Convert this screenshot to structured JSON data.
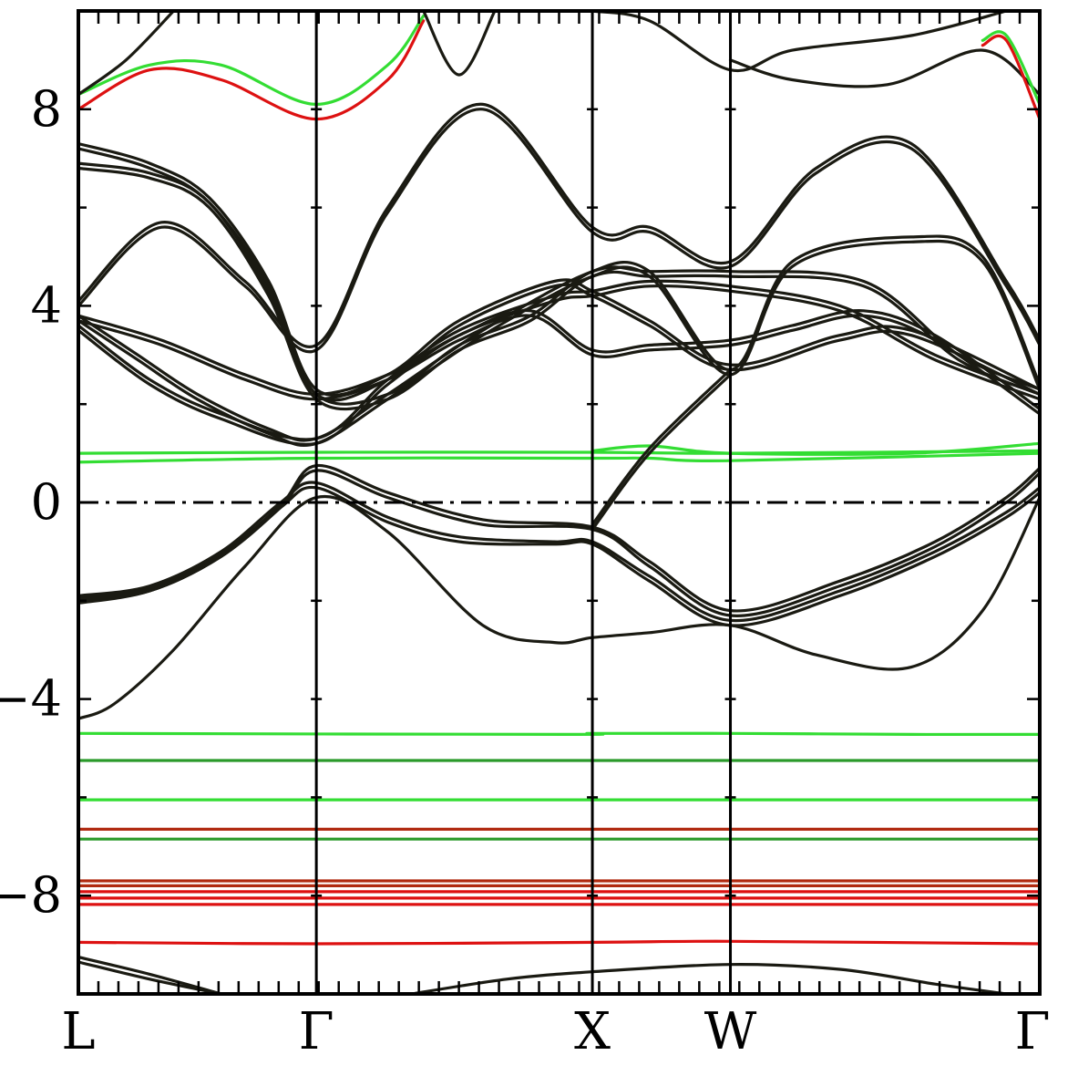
{
  "chart_data": {
    "type": "line",
    "title": "",
    "xlabel": "",
    "ylabel": "",
    "ylim": [
      -10.0,
      10.0
    ],
    "yticks": [
      "−8",
      "−4",
      "0",
      "4",
      "8"
    ],
    "ytick_values": [
      -8,
      -4,
      0,
      4,
      8
    ],
    "high_symmetry_points": [
      {
        "label": "L",
        "x": 0.0
      },
      {
        "label": "Γ",
        "x": 1.0
      },
      {
        "label": "X",
        "x": 2.16
      },
      {
        "label": "W",
        "x": 2.74
      },
      {
        "label": "Γ",
        "x": 4.04
      }
    ],
    "fermi_level": 0,
    "colors": {
      "frame": "#000000",
      "dark": "#1a1a12",
      "green": "#33dd33",
      "green_dark": "#2a9a2a",
      "red": "#dd1111",
      "red_dark": "#b02a10"
    },
    "series": [
      {
        "color": "green",
        "x": [
          0,
          2.04,
          2.16,
          2.74,
          3.5,
          4.04
        ],
        "y": [
          -4.7,
          -4.72,
          -4.7,
          -4.7,
          -4.72,
          -4.72
        ]
      },
      {
        "color": "green_dark",
        "x": [
          0,
          4.04
        ],
        "y": [
          -5.25,
          -5.25
        ]
      },
      {
        "color": "green",
        "x": [
          0,
          4.04
        ],
        "y": [
          -6.05,
          -6.05
        ]
      },
      {
        "color": "red_dark",
        "x": [
          0,
          4.04
        ],
        "y": [
          -6.65,
          -6.65
        ]
      },
      {
        "color": "green_dark",
        "x": [
          0,
          4.04
        ],
        "y": [
          -6.85,
          -6.85
        ]
      },
      {
        "color": "red_dark",
        "x": [
          0,
          4.04
        ],
        "y": [
          -7.7,
          -7.7
        ]
      },
      {
        "color": "red_dark",
        "x": [
          0,
          4.04
        ],
        "y": [
          -7.8,
          -7.8
        ]
      },
      {
        "color": "red",
        "x": [
          0,
          4.04
        ],
        "y": [
          -7.92,
          -7.92
        ]
      },
      {
        "color": "red",
        "x": [
          0,
          4.04
        ],
        "y": [
          -8.05,
          -8.05
        ]
      },
      {
        "color": "red",
        "x": [
          0,
          4.04
        ],
        "y": [
          -8.18,
          -8.18
        ]
      },
      {
        "color": "red",
        "x": [
          0,
          1.0,
          2.16,
          2.74,
          4.04
        ],
        "y": [
          -8.95,
          -8.98,
          -8.95,
          -8.93,
          -8.98
        ]
      },
      {
        "color": "dark",
        "x": [
          0,
          0.3,
          0.6
        ],
        "y": [
          -9.25,
          -9.6,
          -10.0
        ]
      },
      {
        "color": "dark",
        "x": [
          0,
          0.3,
          0.6
        ],
        "y": [
          -9.35,
          -9.7,
          -10.0
        ]
      },
      {
        "color": "dark",
        "x": [
          1.4,
          1.8,
          2.16,
          2.74,
          3.2,
          3.6,
          3.9
        ],
        "y": [
          -10.0,
          -9.7,
          -9.55,
          -9.4,
          -9.5,
          -9.8,
          -10.0
        ]
      },
      {
        "color": "green",
        "x": [
          0,
          1.0,
          2.16,
          2.4,
          2.74,
          4.04
        ],
        "y": [
          0.82,
          0.9,
          0.9,
          0.9,
          0.85,
          1.0
        ]
      },
      {
        "color": "green",
        "x": [
          0,
          1.0,
          2.16,
          2.74,
          4.04
        ],
        "y": [
          1.0,
          1.02,
          1.02,
          1.0,
          1.05
        ]
      },
      {
        "color": "green",
        "x": [
          2.16,
          2.4,
          2.74,
          3.5,
          4.04
        ],
        "y": [
          1.05,
          1.15,
          1.0,
          1.0,
          1.2
        ]
      },
      {
        "color": "dark",
        "x": [
          0,
          0.15,
          0.4,
          0.7,
          1.0,
          1.3,
          1.7,
          2.0,
          2.16,
          2.4,
          2.74,
          3.1,
          3.5,
          3.8,
          4.04
        ],
        "y": [
          -4.4,
          -4.1,
          -3.0,
          -1.3,
          0.1,
          -0.6,
          -2.5,
          -2.85,
          -2.75,
          -2.65,
          -2.5,
          -3.1,
          -3.35,
          -2.2,
          0.1
        ]
      },
      {
        "color": "dark",
        "x": [
          0,
          0.3,
          0.6,
          0.85,
          1.0,
          1.3,
          1.6,
          2.0,
          2.16,
          2.4,
          2.74,
          3.2,
          3.6,
          3.9,
          4.04
        ],
        "y": [
          -1.9,
          -1.7,
          -1.0,
          0.0,
          0.4,
          -0.3,
          -0.7,
          -0.8,
          -0.8,
          -1.5,
          -2.4,
          -1.8,
          -1.0,
          -0.2,
          0.3
        ]
      },
      {
        "color": "dark",
        "x": [
          0,
          0.3,
          0.6,
          0.85,
          1.0,
          1.3,
          1.6,
          2.0,
          2.16,
          2.4,
          2.74,
          3.2,
          3.6,
          3.9,
          4.04
        ],
        "y": [
          -2.05,
          -1.8,
          -1.1,
          -0.1,
          0.3,
          -0.4,
          -0.8,
          -0.85,
          -0.85,
          -1.6,
          -2.5,
          -1.9,
          -1.1,
          -0.3,
          0.2
        ]
      },
      {
        "color": "dark",
        "x": [
          0,
          0.3,
          0.6,
          0.85,
          1.0,
          1.3,
          1.7,
          2.16,
          2.4,
          2.74,
          3.2,
          3.6,
          3.9,
          4.04
        ],
        "y": [
          -1.95,
          -1.75,
          -1.05,
          -0.05,
          0.75,
          0.2,
          -0.35,
          -0.5,
          -1.2,
          -2.2,
          -1.6,
          -0.8,
          0.1,
          0.7
        ]
      },
      {
        "color": "dark",
        "x": [
          0,
          0.3,
          0.6,
          0.85,
          1.0,
          1.3,
          1.7,
          2.16,
          2.4,
          2.74,
          3.2,
          3.6,
          3.9,
          4.04
        ],
        "y": [
          -2.0,
          -1.8,
          -1.1,
          -0.1,
          0.65,
          0.1,
          -0.45,
          -0.55,
          -1.3,
          -2.3,
          -1.7,
          -0.9,
          0.0,
          0.6
        ]
      },
      {
        "color": "dark",
        "x": [
          2.16,
          2.4,
          2.74
        ],
        "y": [
          -0.45,
          1.1,
          2.7
        ]
      },
      {
        "color": "dark",
        "x": [
          2.16,
          2.4,
          2.74
        ],
        "y": [
          -0.55,
          1.0,
          2.6
        ]
      },
      {
        "color": "dark",
        "x": [
          0,
          0.3,
          0.6,
          1.0,
          1.3,
          1.6,
          2.0,
          2.16,
          2.4,
          2.74,
          3.2,
          3.6,
          4.04
        ],
        "y": [
          3.6,
          2.5,
          1.8,
          1.3,
          2.5,
          3.5,
          4.2,
          4.3,
          4.5,
          4.4,
          4.0,
          3.0,
          2.2
        ]
      },
      {
        "color": "dark",
        "x": [
          0,
          0.3,
          0.6,
          1.0,
          1.3,
          1.6,
          2.0,
          2.16,
          2.4,
          2.74,
          3.2,
          3.6,
          4.04
        ],
        "y": [
          3.5,
          2.4,
          1.7,
          1.2,
          2.4,
          3.4,
          4.1,
          4.2,
          4.4,
          4.3,
          3.9,
          2.9,
          2.1
        ]
      },
      {
        "color": "dark",
        "x": [
          0,
          0.25,
          0.5,
          0.8,
          1.0,
          1.3,
          1.7,
          2.16,
          2.4,
          2.74,
          3.3,
          3.7,
          4.04
        ],
        "y": [
          3.8,
          3.0,
          2.2,
          1.5,
          1.3,
          2.2,
          3.5,
          4.7,
          4.7,
          4.7,
          4.5,
          3.0,
          2.3
        ]
      },
      {
        "color": "dark",
        "x": [
          0,
          0.25,
          0.5,
          0.8,
          1.0,
          1.3,
          1.7,
          2.16,
          2.4,
          2.74,
          3.3,
          3.7,
          4.04
        ],
        "y": [
          3.7,
          2.9,
          2.1,
          1.4,
          1.2,
          2.1,
          3.4,
          4.6,
          4.6,
          4.6,
          4.4,
          2.9,
          2.2
        ]
      },
      {
        "color": "dark",
        "x": [
          0,
          0.35,
          0.7,
          1.0,
          1.3,
          1.6,
          1.9,
          2.16,
          2.4,
          2.74,
          3.0,
          3.3,
          3.6,
          4.04
        ],
        "y": [
          3.8,
          3.3,
          2.6,
          2.2,
          2.6,
          3.4,
          3.9,
          3.1,
          3.2,
          3.3,
          3.6,
          3.9,
          3.4,
          1.9
        ]
      },
      {
        "color": "dark",
        "x": [
          0,
          0.35,
          0.7,
          1.0,
          1.3,
          1.6,
          1.9,
          2.16,
          2.4,
          2.74,
          3.0,
          3.3,
          3.6,
          4.04
        ],
        "y": [
          3.7,
          3.2,
          2.5,
          2.1,
          2.5,
          3.3,
          3.8,
          3.0,
          3.1,
          3.2,
          3.5,
          3.8,
          3.3,
          1.8
        ]
      },
      {
        "color": "dark",
        "x": [
          0,
          0.35,
          0.7,
          1.0,
          1.3,
          1.7,
          2.16,
          2.4,
          2.74,
          3.1,
          3.5,
          3.9,
          4.04
        ],
        "y": [
          4.1,
          5.7,
          4.5,
          3.2,
          6.0,
          8.1,
          5.6,
          5.6,
          4.9,
          6.8,
          7.3,
          4.5,
          3.3
        ]
      },
      {
        "color": "dark",
        "x": [
          0,
          0.35,
          0.7,
          1.0,
          1.3,
          1.7,
          2.16,
          2.4,
          2.74,
          3.1,
          3.5,
          3.9,
          4.04
        ],
        "y": [
          4.0,
          5.6,
          4.4,
          3.1,
          5.9,
          8.0,
          5.5,
          5.5,
          4.8,
          6.7,
          7.2,
          4.4,
          3.2
        ]
      },
      {
        "color": "dark",
        "x": [
          0,
          0.3,
          0.55,
          0.8,
          1.0,
          1.3,
          1.6,
          2.0,
          2.16,
          2.4,
          2.74,
          3.2,
          3.5,
          4.04
        ],
        "y": [
          7.3,
          6.9,
          6.2,
          4.5,
          2.3,
          2.6,
          3.7,
          4.5,
          4.3,
          3.7,
          2.8,
          3.4,
          3.5,
          2.3
        ]
      },
      {
        "color": "dark",
        "x": [
          0,
          0.3,
          0.55,
          0.8,
          1.0,
          1.3,
          1.6,
          2.0,
          2.16,
          2.4,
          2.74,
          3.2,
          3.5,
          4.04
        ],
        "y": [
          7.2,
          6.8,
          6.1,
          4.4,
          2.2,
          2.5,
          3.6,
          4.4,
          4.2,
          3.6,
          2.7,
          3.3,
          3.4,
          2.2
        ]
      },
      {
        "color": "dark",
        "x": [
          0,
          0.3,
          0.55,
          0.8,
          1.0,
          1.3,
          1.6,
          1.9,
          2.16,
          2.4,
          2.74,
          3.0,
          3.5,
          3.8,
          4.04
        ],
        "y": [
          6.9,
          6.7,
          6.1,
          4.3,
          2.2,
          2.2,
          3.2,
          3.8,
          4.7,
          4.7,
          2.7,
          4.9,
          5.4,
          5.0,
          2.4
        ]
      },
      {
        "color": "dark",
        "x": [
          0,
          0.3,
          0.55,
          0.8,
          1.0,
          1.3,
          1.6,
          1.9,
          2.16,
          2.4,
          2.74,
          3.0,
          3.5,
          3.8,
          4.04
        ],
        "y": [
          6.8,
          6.6,
          6.0,
          4.2,
          2.1,
          2.1,
          3.1,
          3.7,
          4.6,
          4.6,
          2.6,
          4.8,
          5.3,
          4.9,
          2.3
        ]
      },
      {
        "color": "red",
        "x": [
          0,
          0.3,
          0.6,
          1.0,
          1.3,
          1.45
        ],
        "y": [
          8.0,
          8.8,
          8.6,
          7.8,
          8.6,
          9.8
        ]
      },
      {
        "color": "green",
        "x": [
          0,
          0.3,
          0.6,
          1.0,
          1.3,
          1.45
        ],
        "y": [
          8.3,
          8.9,
          8.9,
          8.1,
          8.9,
          9.9
        ]
      },
      {
        "color": "dark",
        "x": [
          0,
          0.2,
          0.4
        ],
        "y": [
          8.3,
          9.0,
          10.0
        ]
      },
      {
        "color": "dark",
        "x": [
          1.45,
          1.6,
          1.75
        ],
        "y": [
          10.0,
          8.7,
          10.0
        ]
      },
      {
        "color": "dark",
        "x": [
          2.74,
          3.0,
          3.4,
          3.8,
          4.04
        ],
        "y": [
          9.0,
          8.6,
          8.5,
          9.2,
          8.3
        ]
      },
      {
        "color": "red",
        "x": [
          3.8,
          3.9,
          4.04
        ],
        "y": [
          9.3,
          9.4,
          7.8
        ]
      },
      {
        "color": "green",
        "x": [
          3.8,
          3.9,
          4.04
        ],
        "y": [
          9.4,
          9.5,
          8.1
        ]
      },
      {
        "color": "dark",
        "x": [
          2.16,
          2.4,
          2.74,
          3.0,
          3.5,
          3.9
        ],
        "y": [
          10.0,
          9.8,
          8.8,
          9.2,
          9.5,
          10.0
        ]
      }
    ]
  }
}
